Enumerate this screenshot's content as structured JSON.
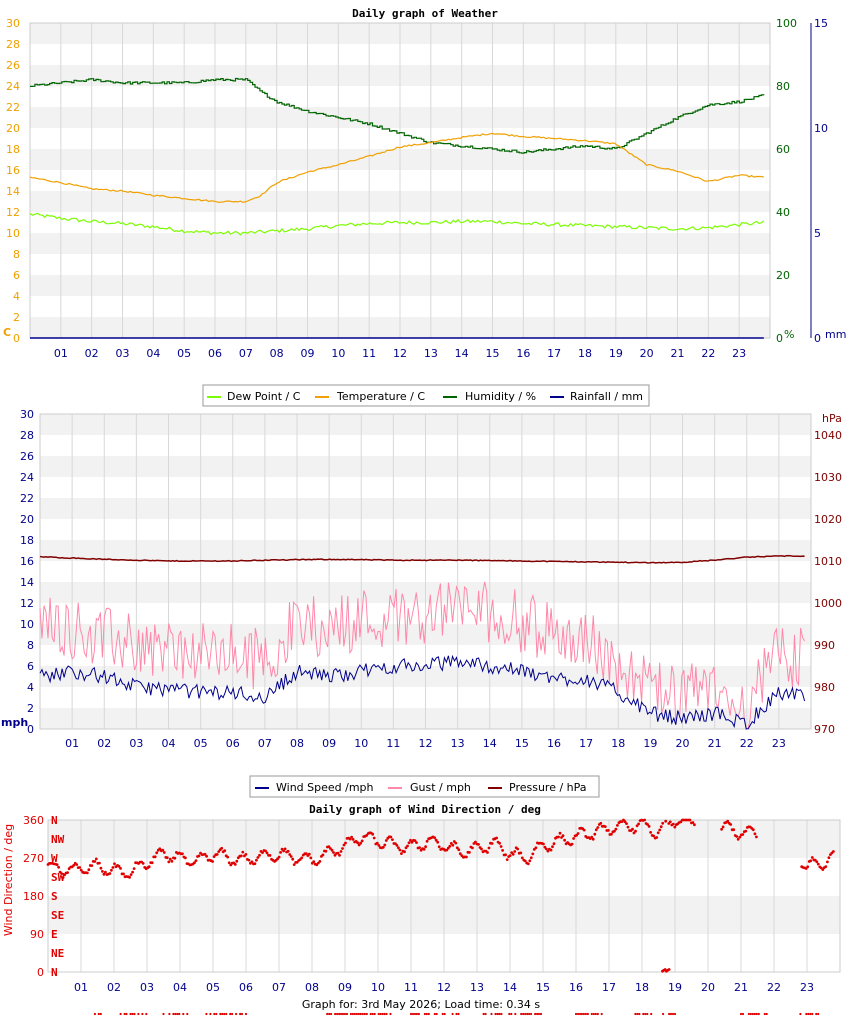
{
  "colors": {
    "dew": "#7CFC00",
    "temp": "#F0A000",
    "humidity": "#006400",
    "rain": "#00008B",
    "wind": "#00008B",
    "gust": "#FF88AA",
    "pressure": "#800000",
    "direction": "#E00000",
    "grid_band": "#F2F2F2",
    "grid_line": "#D8D8D8",
    "axis_left1": "#F0A000",
    "axis_left2": "#00008B",
    "axis_right_hum": "#006400",
    "axis_right_rain": "#00008B"
  },
  "hours": [
    "01",
    "02",
    "03",
    "04",
    "05",
    "06",
    "07",
    "08",
    "09",
    "10",
    "11",
    "12",
    "13",
    "14",
    "15",
    "16",
    "17",
    "18",
    "19",
    "20",
    "21",
    "22",
    "23"
  ],
  "chart1": {
    "title": "Daily graph of Weather",
    "left_unit": "C",
    "right_unit1": "%",
    "right_unit2": "mm",
    "left_ticks": [
      "0",
      "2",
      "4",
      "6",
      "8",
      "10",
      "12",
      "14",
      "16",
      "18",
      "20",
      "22",
      "24",
      "26",
      "28",
      "30"
    ],
    "hum_ticks": [
      "0",
      "20",
      "40",
      "60",
      "80",
      "100"
    ],
    "rain_ticks": [
      "0",
      "5",
      "10",
      "15"
    ],
    "legend": [
      "Dew Point / C",
      "Temperature / C",
      "Humidity / %",
      "Rainfall / mm"
    ]
  },
  "chart2": {
    "left_unit": "mph",
    "right_unit": "hPa",
    "left_ticks": [
      "0",
      "2",
      "4",
      "6",
      "8",
      "10",
      "12",
      "14",
      "16",
      "18",
      "20",
      "22",
      "24",
      "26",
      "28",
      "30"
    ],
    "right_ticks": [
      "970",
      "980",
      "990",
      "1000",
      "1010",
      "1020",
      "1030",
      "1040"
    ],
    "legend": [
      "Wind Speed /mph",
      "Gust / mph",
      "Pressure / hPa"
    ]
  },
  "chart3": {
    "title": "Daily graph of Wind Direction / deg",
    "ylabel": "Wind Direction / deg",
    "left_ticks": [
      "0",
      "90",
      "180",
      "270",
      "360"
    ],
    "compass": [
      "N",
      "NE",
      "E",
      "SE",
      "S",
      "SW",
      "W",
      "NW",
      "N"
    ]
  },
  "footer": "Graph for: 3rd May 2026; Load time: 0.34 s",
  "chart_data": [
    {
      "type": "line",
      "title": "Daily graph of Weather",
      "x": [
        0,
        1,
        2,
        3,
        4,
        5,
        6,
        7,
        7.5,
        8,
        9,
        10,
        11,
        12,
        13,
        14,
        15,
        16,
        17,
        18,
        19,
        20,
        21,
        22,
        23,
        23.8
      ],
      "xlabel": "",
      "ylabel": "C",
      "ylim": [
        0,
        30
      ],
      "y2lim_humidity": [
        0,
        100
      ],
      "y2lim_rain": [
        0,
        15
      ],
      "series": [
        {
          "name": "Dew Point / C",
          "values": [
            11.8,
            11.4,
            11.1,
            10.9,
            10.6,
            10.2,
            10.0,
            10.0,
            10.1,
            10.2,
            10.4,
            10.7,
            10.9,
            11.0,
            11.0,
            11.1,
            11.1,
            10.9,
            10.8,
            10.7,
            10.6,
            10.5,
            10.4,
            10.5,
            10.8,
            11.0
          ]
        },
        {
          "name": "Temperature / C",
          "values": [
            15.3,
            14.8,
            14.2,
            14.0,
            13.6,
            13.3,
            13.0,
            13.0,
            13.6,
            14.8,
            15.8,
            16.5,
            17.3,
            18.2,
            18.6,
            19.1,
            19.5,
            19.2,
            19.0,
            18.8,
            18.5,
            16.5,
            15.9,
            14.9,
            15.5,
            15.3
          ]
        },
        {
          "name": "Humidity / %",
          "values": [
            80,
            81,
            82,
            81,
            81,
            81,
            82,
            82,
            78,
            75,
            72,
            70,
            68,
            65,
            62,
            61,
            60,
            59,
            60,
            61,
            60,
            65,
            70,
            74,
            75,
            77
          ]
        },
        {
          "name": "Rainfall / mm",
          "values": [
            0,
            0,
            0,
            0,
            0,
            0,
            0,
            0,
            0,
            0,
            0,
            0,
            0,
            0,
            0,
            0,
            0,
            0,
            0,
            0,
            0,
            0,
            0,
            0,
            0,
            0
          ]
        }
      ]
    },
    {
      "type": "line",
      "title": "",
      "x": [
        0,
        1,
        2,
        3,
        4,
        5,
        6,
        7,
        8,
        9,
        10,
        11,
        12,
        13,
        14,
        15,
        16,
        17,
        18,
        19,
        20,
        21,
        22,
        23,
        23.8
      ],
      "ylim": [
        0,
        30
      ],
      "y2lim_pressure": [
        970,
        1045
      ],
      "series": [
        {
          "name": "Wind Speed /mph",
          "values": [
            5.0,
            5.5,
            5.0,
            4.0,
            3.8,
            3.5,
            3.5,
            3.0,
            5.5,
            5.0,
            5.5,
            6.0,
            6.0,
            6.5,
            6.0,
            5.5,
            4.8,
            4.8,
            3.5,
            1.5,
            1.0,
            1.5,
            0.5,
            3.5,
            3.0
          ]
        },
        {
          "name": "Gust / mph",
          "values": [
            10,
            9,
            8,
            7.5,
            7,
            6.5,
            6.5,
            6,
            9.5,
            9,
            10,
            10,
            10.5,
            11,
            10.5,
            9.5,
            8.5,
            8,
            5,
            3,
            2.5,
            3,
            1.5,
            6.5,
            6
          ]
        },
        {
          "name": "Pressure / hPa",
          "values": [
            1011,
            1010.7,
            1010.4,
            1010.2,
            1010,
            1010,
            1010,
            1010.2,
            1010.3,
            1010.4,
            1010.3,
            1010.2,
            1010.2,
            1010.2,
            1010.1,
            1010,
            1009.9,
            1009.8,
            1009.7,
            1009.6,
            1009.7,
            1010.2,
            1010.9,
            1011.2,
            1011.2
          ]
        }
      ]
    },
    {
      "type": "scatter",
      "title": "Daily graph of Wind Direction / deg",
      "ylabel": "Wind Direction / deg",
      "ylim": [
        0,
        360
      ],
      "series": [
        {
          "name": "Wind Direction",
          "x": [
            0,
            0.5,
            1,
            1.5,
            2,
            2.5,
            3,
            3.5,
            4,
            4.5,
            5,
            5.5,
            6,
            6.5,
            7,
            7.5,
            8,
            8.5,
            9,
            9.5,
            10,
            10.5,
            11,
            11.5,
            12,
            12.5,
            13,
            13.5,
            14,
            14.5,
            15,
            15.5,
            16,
            16.5,
            17,
            17.5,
            18,
            18.5,
            19,
            20,
            21,
            22,
            23,
            23.5,
            23.8
          ],
          "values": [
            250,
            240,
            245,
            250,
            240,
            235,
            260,
            280,
            270,
            260,
            280,
            270,
            265,
            275,
            280,
            270,
            265,
            280,
            300,
            320,
            310,
            300,
            295,
            310,
            300,
            285,
            290,
            305,
            280,
            270,
            300,
            310,
            320,
            330,
            340,
            345,
            350,
            330,
            360,
            355,
            330,
            325,
            250,
            260,
            270
          ]
        }
      ]
    }
  ]
}
